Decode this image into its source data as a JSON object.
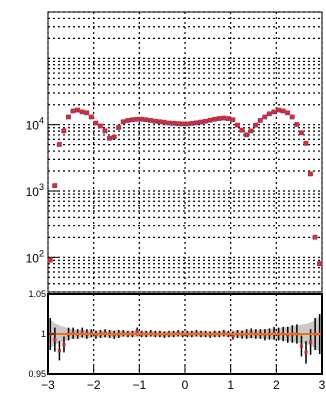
{
  "chart_data": [
    {
      "type": "scatter",
      "title": "",
      "xlabel": "",
      "ylabel": "",
      "x_range": [
        -3,
        3
      ],
      "y_range": [
        30,
        500000
      ],
      "y_scale": "log",
      "grid": true,
      "y_tick_labels": [
        {
          "value": 100,
          "base": "10",
          "exp": "2"
        },
        {
          "value": 1000,
          "base": "10",
          "exp": "3"
        },
        {
          "value": 10000,
          "base": "10",
          "exp": "4"
        }
      ],
      "colors": {
        "data_marker": "#d32f2f",
        "mc_marker": "#3344cc"
      },
      "points": [
        {
          "x": -2.95,
          "y": 90
        },
        {
          "x": -2.85,
          "y": 1200
        },
        {
          "x": -2.75,
          "y": 5000
        },
        {
          "x": -2.65,
          "y": 8000
        },
        {
          "x": -2.55,
          "y": 13000
        },
        {
          "x": -2.45,
          "y": 16000
        },
        {
          "x": -2.35,
          "y": 16500
        },
        {
          "x": -2.25,
          "y": 15500
        },
        {
          "x": -2.15,
          "y": 15000
        },
        {
          "x": -2.05,
          "y": 13000
        },
        {
          "x": -1.95,
          "y": 10500
        },
        {
          "x": -1.85,
          "y": 9500
        },
        {
          "x": -1.75,
          "y": 8000
        },
        {
          "x": -1.65,
          "y": 6200
        },
        {
          "x": -1.55,
          "y": 6500
        },
        {
          "x": -1.45,
          "y": 9000
        },
        {
          "x": -1.35,
          "y": 11000
        },
        {
          "x": -1.25,
          "y": 11500
        },
        {
          "x": -1.15,
          "y": 11800
        },
        {
          "x": -1.05,
          "y": 12000
        },
        {
          "x": -0.95,
          "y": 12000
        },
        {
          "x": -0.85,
          "y": 11800
        },
        {
          "x": -0.75,
          "y": 11500
        },
        {
          "x": -0.65,
          "y": 11200
        },
        {
          "x": -0.55,
          "y": 11000
        },
        {
          "x": -0.45,
          "y": 10800
        },
        {
          "x": -0.35,
          "y": 10500
        },
        {
          "x": -0.25,
          "y": 10400
        },
        {
          "x": -0.15,
          "y": 10300
        },
        {
          "x": -0.05,
          "y": 10200
        },
        {
          "x": 0.05,
          "y": 10200
        },
        {
          "x": 0.15,
          "y": 10400
        },
        {
          "x": 0.25,
          "y": 10600
        },
        {
          "x": 0.35,
          "y": 10900
        },
        {
          "x": 0.45,
          "y": 11200
        },
        {
          "x": 0.55,
          "y": 11600
        },
        {
          "x": 0.65,
          "y": 12000
        },
        {
          "x": 0.75,
          "y": 12300
        },
        {
          "x": 0.85,
          "y": 12500
        },
        {
          "x": 0.95,
          "y": 12300
        },
        {
          "x": 1.05,
          "y": 11800
        },
        {
          "x": 1.15,
          "y": 9800
        },
        {
          "x": 1.25,
          "y": 8200
        },
        {
          "x": 1.35,
          "y": 7000
        },
        {
          "x": 1.45,
          "y": 8000
        },
        {
          "x": 1.55,
          "y": 9800
        },
        {
          "x": 1.65,
          "y": 11500
        },
        {
          "x": 1.75,
          "y": 13000
        },
        {
          "x": 1.85,
          "y": 14500
        },
        {
          "x": 1.95,
          "y": 15500
        },
        {
          "x": 2.05,
          "y": 16500
        },
        {
          "x": 2.15,
          "y": 16000
        },
        {
          "x": 2.25,
          "y": 15000
        },
        {
          "x": 2.35,
          "y": 13000
        },
        {
          "x": 2.45,
          "y": 10000
        },
        {
          "x": 2.55,
          "y": 7500
        },
        {
          "x": 2.65,
          "y": 5200
        },
        {
          "x": 2.75,
          "y": 1800
        },
        {
          "x": 2.85,
          "y": 200
        },
        {
          "x": 2.95,
          "y": 80
        }
      ]
    },
    {
      "type": "scatter",
      "title": "",
      "xlabel": "",
      "ylabel": "",
      "x_range": [
        -3,
        3
      ],
      "y_range": [
        0.95,
        1.05
      ],
      "grid": true,
      "x_tick_labels": [
        "−3",
        "−2",
        "−1",
        "0",
        "1",
        "2",
        "3"
      ],
      "y_tick_labels": [
        "0.95",
        "1",
        "1.05"
      ],
      "colors": {
        "data_marker": "#d32f2f",
        "fit_line": "#e8701a",
        "error_band": "#bbbbbb"
      },
      "ratio_points": [
        {
          "x": -2.95,
          "y": 1.0,
          "err": 0.02
        },
        {
          "x": -2.85,
          "y": 0.993,
          "err": 0.015
        },
        {
          "x": -2.75,
          "y": 0.979,
          "err": 0.012
        },
        {
          "x": -2.65,
          "y": 0.987,
          "err": 0.01
        },
        {
          "x": -2.55,
          "y": 1.0,
          "err": 0.008
        },
        {
          "x": -2.45,
          "y": 1.001,
          "err": 0.007
        },
        {
          "x": -2.35,
          "y": 1.0,
          "err": 0.006
        },
        {
          "x": -2.25,
          "y": 1.002,
          "err": 0.006
        },
        {
          "x": -2.15,
          "y": 1.0,
          "err": 0.006
        },
        {
          "x": -2.05,
          "y": 1.001,
          "err": 0.005
        },
        {
          "x": -1.95,
          "y": 0.999,
          "err": 0.005
        },
        {
          "x": -1.85,
          "y": 1.0,
          "err": 0.005
        },
        {
          "x": -1.75,
          "y": 1.001,
          "err": 0.005
        },
        {
          "x": -1.65,
          "y": 1.0,
          "err": 0.005
        },
        {
          "x": -1.55,
          "y": 0.999,
          "err": 0.005
        },
        {
          "x": -1.45,
          "y": 1.0,
          "err": 0.005
        },
        {
          "x": -1.35,
          "y": 1.001,
          "err": 0.004
        },
        {
          "x": -1.25,
          "y": 1.0,
          "err": 0.004
        },
        {
          "x": -1.15,
          "y": 1.0,
          "err": 0.004
        },
        {
          "x": -1.05,
          "y": 1.003,
          "err": 0.005
        },
        {
          "x": -0.95,
          "y": 1.0,
          "err": 0.004
        },
        {
          "x": -0.85,
          "y": 1.0,
          "err": 0.004
        },
        {
          "x": -0.75,
          "y": 1.001,
          "err": 0.004
        },
        {
          "x": -0.65,
          "y": 1.0,
          "err": 0.004
        },
        {
          "x": -0.55,
          "y": 1.0,
          "err": 0.004
        },
        {
          "x": -0.45,
          "y": 0.999,
          "err": 0.004
        },
        {
          "x": -0.35,
          "y": 1.0,
          "err": 0.004
        },
        {
          "x": -0.25,
          "y": 1.0,
          "err": 0.004
        },
        {
          "x": -0.15,
          "y": 1.001,
          "err": 0.004
        },
        {
          "x": -0.05,
          "y": 1.0,
          "err": 0.004
        },
        {
          "x": 0.05,
          "y": 1.0,
          "err": 0.004
        },
        {
          "x": 0.15,
          "y": 1.0,
          "err": 0.004
        },
        {
          "x": 0.25,
          "y": 1.001,
          "err": 0.004
        },
        {
          "x": 0.35,
          "y": 1.0,
          "err": 0.004
        },
        {
          "x": 0.45,
          "y": 1.0,
          "err": 0.004
        },
        {
          "x": 0.55,
          "y": 0.999,
          "err": 0.004
        },
        {
          "x": 0.65,
          "y": 1.0,
          "err": 0.004
        },
        {
          "x": 0.75,
          "y": 1.0,
          "err": 0.004
        },
        {
          "x": 0.85,
          "y": 1.001,
          "err": 0.004
        },
        {
          "x": 0.95,
          "y": 1.0,
          "err": 0.004
        },
        {
          "x": 1.05,
          "y": 0.998,
          "err": 0.005
        },
        {
          "x": 1.15,
          "y": 1.0,
          "err": 0.005
        },
        {
          "x": 1.25,
          "y": 0.999,
          "err": 0.005
        },
        {
          "x": 1.35,
          "y": 1.0,
          "err": 0.006
        },
        {
          "x": 1.45,
          "y": 1.001,
          "err": 0.006
        },
        {
          "x": 1.55,
          "y": 1.0,
          "err": 0.006
        },
        {
          "x": 1.65,
          "y": 1.0,
          "err": 0.006
        },
        {
          "x": 1.75,
          "y": 0.999,
          "err": 0.007
        },
        {
          "x": 1.85,
          "y": 1.0,
          "err": 0.007
        },
        {
          "x": 1.95,
          "y": 1.001,
          "err": 0.008
        },
        {
          "x": 2.05,
          "y": 1.0,
          "err": 0.008
        },
        {
          "x": 2.15,
          "y": 1.0,
          "err": 0.009
        },
        {
          "x": 2.25,
          "y": 0.999,
          "err": 0.01
        },
        {
          "x": 2.35,
          "y": 1.0,
          "err": 0.011
        },
        {
          "x": 2.45,
          "y": 1.0,
          "err": 0.012
        },
        {
          "x": 2.55,
          "y": 0.985,
          "err": 0.013
        },
        {
          "x": 2.65,
          "y": 0.977,
          "err": 0.014
        },
        {
          "x": 2.75,
          "y": 0.99,
          "err": 0.016
        },
        {
          "x": 2.85,
          "y": 1.0,
          "err": 0.02
        },
        {
          "x": 2.95,
          "y": 1.0,
          "err": 0.025
        }
      ],
      "fit_line": {
        "y": 1.0
      }
    }
  ]
}
